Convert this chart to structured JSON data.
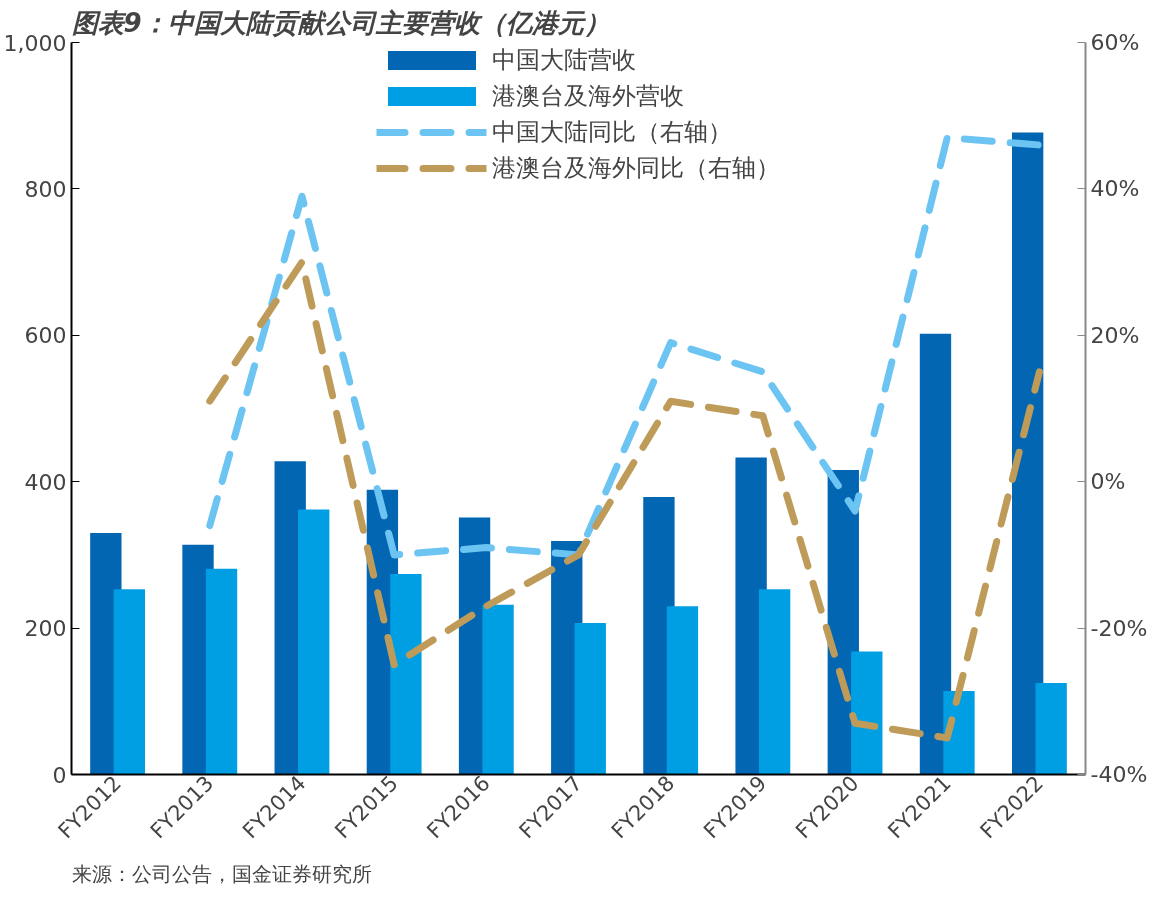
{
  "chart_data": {
    "type": "bar",
    "title": "图表9：中国大陆贡献公司主要营收（亿港元）",
    "annotations": [
      "来源：公司公告，国金证券研究所"
    ],
    "categories": [
      "FY2012",
      "FY2013",
      "FY2014",
      "FY2015",
      "FY2016",
      "FY2017",
      "FY2018",
      "FY2019",
      "FY2020",
      "FY2021",
      "FY2022"
    ],
    "series": [
      {
        "name": "中国大陆营收",
        "color": "#0366b3",
        "values": [
          330,
          314,
          428,
          389,
          351,
          319,
          379,
          433,
          416,
          602,
          877
        ]
      },
      {
        "name": "港澳台及海外营收",
        "color": "#009fe3",
        "values": [
          253,
          281,
          362,
          274,
          232,
          207,
          230,
          253,
          168,
          114,
          125
        ]
      },
      {
        "name": "中国大陆同比（右轴）",
        "type": "line",
        "axis": "y2",
        "line_style": "dashed",
        "color": "#6cc4f2",
        "values": [
          null,
          -6,
          39,
          -10,
          -9,
          -10,
          19,
          15,
          -4,
          47,
          46
        ]
      },
      {
        "name": "港澳台及海外同比（右轴）",
        "type": "line",
        "axis": "y2",
        "line_style": "dashed",
        "color": "#bf9b5a",
        "values": [
          null,
          11,
          30,
          -25,
          -17,
          -10,
          11,
          9,
          -33,
          -35,
          15
        ]
      }
    ],
    "ylim": [
      0,
      1000
    ],
    "yticks": [
      0,
      200,
      400,
      600,
      800,
      {
        "value": 1000,
        "label": "1,000"
      }
    ],
    "y2lim": [
      -40,
      60
    ],
    "y2ticks": [
      {
        "value": -40,
        "label": "-40%"
      },
      {
        "value": -20,
        "label": "-20%"
      },
      {
        "value": 0,
        "label": "0%"
      },
      {
        "value": 20,
        "label": "20%"
      },
      {
        "value": 40,
        "label": "40%"
      },
      {
        "value": 60,
        "label": "60%"
      }
    ],
    "grid": false,
    "legend": "top"
  }
}
